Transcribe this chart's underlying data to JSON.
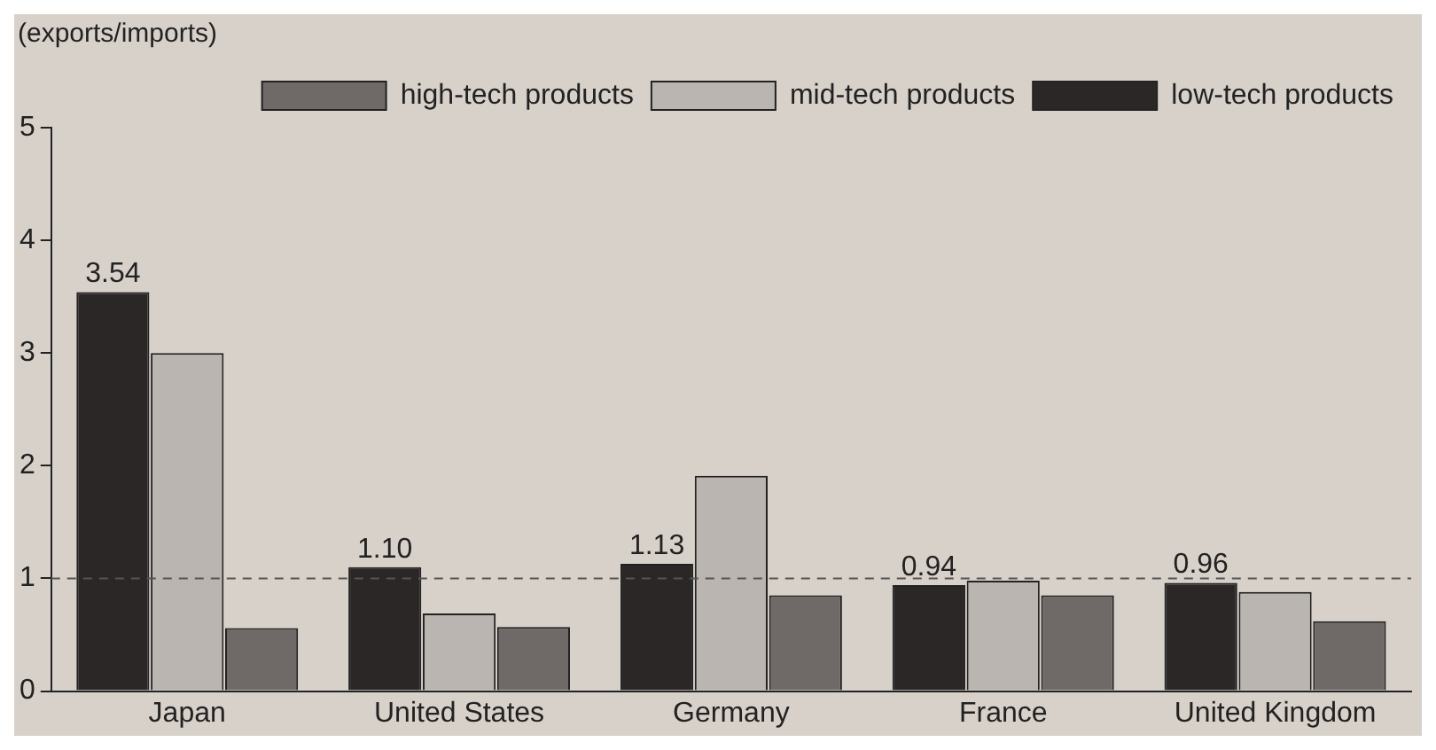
{
  "chart_data": {
    "type": "bar",
    "ylabel": "(exports/imports)",
    "categories": [
      "Japan",
      "United States",
      "Germany",
      "France",
      "United Kingdom"
    ],
    "series": [
      {
        "name": "low-tech products",
        "color": "#2b2727",
        "values": [
          3.54,
          1.1,
          1.13,
          0.94,
          0.96
        ],
        "value_labels": [
          "3.54",
          "1.10",
          "1.13",
          "0.94",
          "0.96"
        ]
      },
      {
        "name": "mid-tech products",
        "color": "#bab5b0",
        "values": [
          3.0,
          0.69,
          1.91,
          0.98,
          0.88
        ]
      },
      {
        "name": "high-tech products",
        "color": "#6f6a68",
        "values": [
          0.56,
          0.57,
          0.85,
          0.85,
          0.62
        ]
      }
    ],
    "ylim": [
      0,
      5
    ],
    "yticks": [
      0,
      1,
      2,
      3,
      4,
      5
    ],
    "grid": false,
    "legend": "top right",
    "ref_lines": [
      {
        "axis": "y",
        "value": 1,
        "color": "#555555",
        "line_style": "dashed"
      }
    ]
  }
}
